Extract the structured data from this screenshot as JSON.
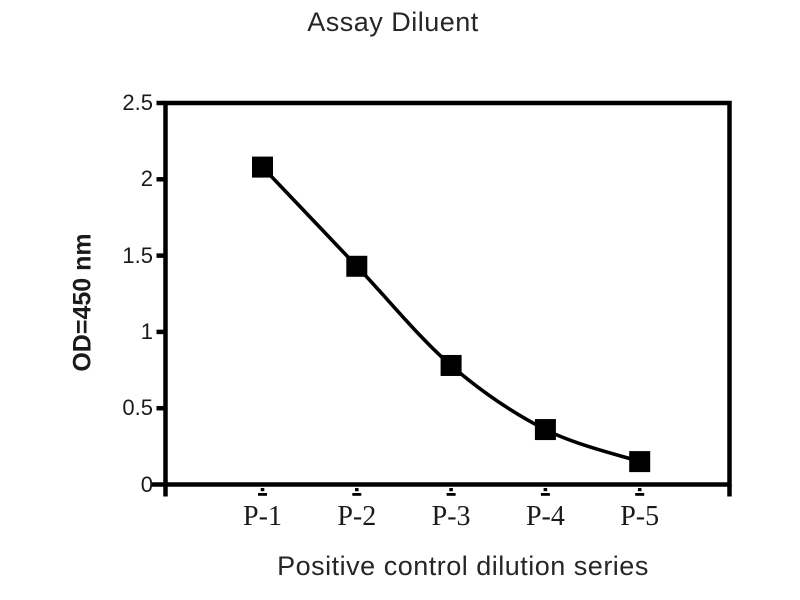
{
  "page": {
    "background_color": "#ffffff"
  },
  "chart_data": {
    "type": "line",
    "title": "Assay Diluent",
    "xlabel": "Positive control dilution series",
    "ylabel": "OD=450 nm",
    "categories": [
      "P-1",
      "P-2",
      "P-3",
      "P-4",
      "P-5"
    ],
    "series": [
      {
        "name": "Assay Diluent",
        "values": [
          2.08,
          1.43,
          0.78,
          0.36,
          0.15
        ]
      }
    ],
    "ylim": [
      0,
      2.5
    ],
    "yticks": [
      0,
      0.5,
      1,
      1.5,
      2,
      2.5
    ],
    "ytick_labels": [
      "0",
      "0.5",
      "1",
      "1.5",
      "2",
      "2.5"
    ],
    "grid": "off",
    "legend": "none",
    "line_style": "smooth",
    "marker": "filled-square",
    "colors": {
      "line": "#000000",
      "marker": "#000000",
      "axis": "#000000",
      "text": "#1f1f1f"
    }
  }
}
